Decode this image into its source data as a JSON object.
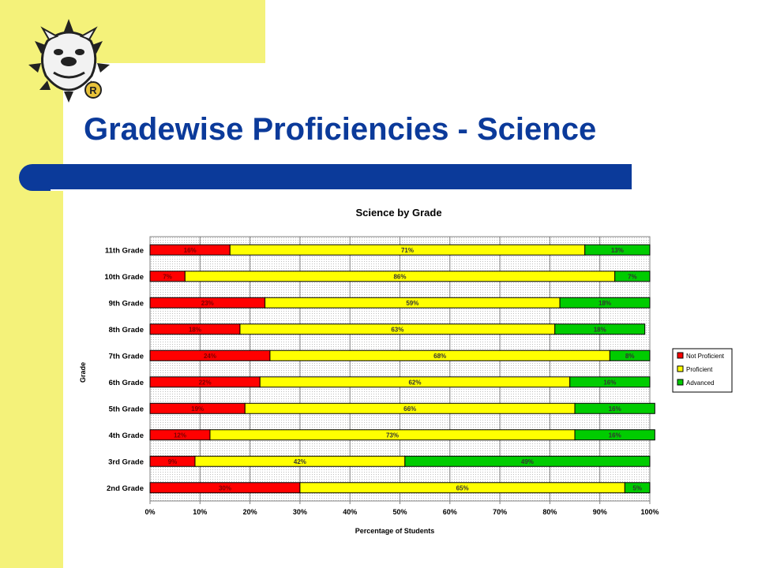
{
  "slide": {
    "title": "Gradewise Proficiencies - Science",
    "logo_letter": "R"
  },
  "colors": {
    "side_panel": "#f4f27a",
    "title": "#0b3a9a",
    "not_proficient": "#ff0000",
    "proficient": "#ffff00",
    "advanced": "#00cc00"
  },
  "chart_data": {
    "type": "bar",
    "orientation": "horizontal",
    "stacked": true,
    "title": "Science by Grade",
    "xlabel": "Percentage of Students",
    "ylabel": "Grade",
    "xlim": [
      0,
      100
    ],
    "x_ticks": [
      "0%",
      "10%",
      "20%",
      "30%",
      "40%",
      "50%",
      "60%",
      "70%",
      "80%",
      "90%",
      "100%"
    ],
    "grid": true,
    "legend_position": "right",
    "categories": [
      "11th Grade",
      "10th Grade",
      "9th Grade",
      "8th Grade",
      "7th Grade",
      "6th Grade",
      "5th Grade",
      "4th Grade",
      "3rd Grade",
      "2nd Grade"
    ],
    "series": [
      {
        "name": "Not Proficient",
        "color": "#ff0000",
        "values": [
          16,
          7,
          23,
          18,
          24,
          22,
          19,
          12,
          9,
          30
        ]
      },
      {
        "name": "Proficient",
        "color": "#ffff00",
        "values": [
          71,
          86,
          59,
          63,
          68,
          62,
          66,
          73,
          42,
          65
        ]
      },
      {
        "name": "Advanced",
        "color": "#00cc00",
        "values": [
          13,
          7,
          18,
          18,
          8,
          16,
          16,
          16,
          49,
          5
        ]
      }
    ]
  }
}
